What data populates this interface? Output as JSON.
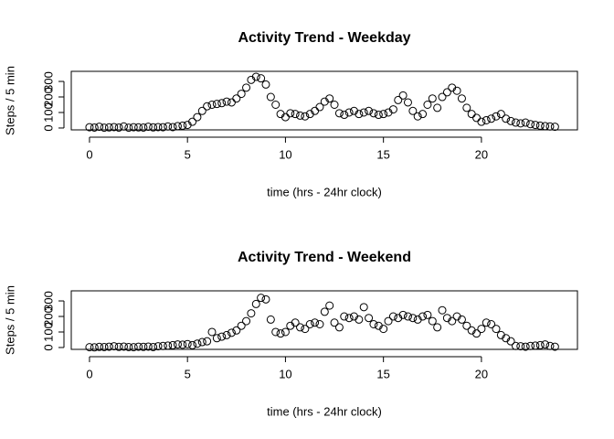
{
  "chart_data": [
    {
      "type": "scatter",
      "title": "Activity Trend - Weekday",
      "x_label": "time (hrs - 24hr clock)",
      "y_label": "Steps / 5 min",
      "x": [
        0,
        0.25,
        0.5,
        0.75,
        1,
        1.25,
        1.5,
        1.75,
        2,
        2.25,
        2.5,
        2.75,
        3,
        3.25,
        3.5,
        3.75,
        4,
        4.25,
        4.5,
        4.75,
        5,
        5.25,
        5.5,
        5.75,
        6,
        6.25,
        6.5,
        6.75,
        7,
        7.25,
        7.5,
        7.75,
        8,
        8.25,
        8.5,
        8.75,
        9,
        9.25,
        9.5,
        9.75,
        10,
        10.25,
        10.5,
        10.75,
        11,
        11.25,
        11.5,
        11.75,
        12,
        12.25,
        12.5,
        12.75,
        13,
        13.25,
        13.5,
        13.75,
        14,
        14.25,
        14.5,
        14.75,
        15,
        15.25,
        15.5,
        15.75,
        16,
        16.25,
        16.5,
        16.75,
        17,
        17.25,
        17.5,
        17.75,
        18,
        18.25,
        18.5,
        18.75,
        19,
        19.25,
        19.5,
        19.75,
        20,
        20.25,
        20.5,
        20.75,
        21,
        21.25,
        21.5,
        21.75,
        22,
        22.25,
        22.5,
        22.75,
        23,
        23.25,
        23.5,
        23.75
      ],
      "values": [
        5,
        3,
        8,
        2,
        4,
        6,
        3,
        10,
        2,
        5,
        4,
        3,
        8,
        4,
        6,
        5,
        10,
        6,
        12,
        15,
        20,
        40,
        70,
        110,
        140,
        150,
        155,
        160,
        170,
        165,
        190,
        220,
        260,
        310,
        330,
        320,
        280,
        200,
        150,
        90,
        70,
        95,
        90,
        80,
        75,
        90,
        110,
        135,
        170,
        190,
        150,
        95,
        85,
        100,
        110,
        90,
        100,
        110,
        95,
        85,
        90,
        100,
        120,
        180,
        210,
        165,
        110,
        75,
        90,
        150,
        190,
        130,
        200,
        230,
        260,
        240,
        190,
        130,
        90,
        65,
        40,
        50,
        60,
        75,
        90,
        60,
        45,
        35,
        30,
        35,
        25,
        20,
        15,
        12,
        10,
        8
      ],
      "color": "#000000",
      "xlim": [
        -0.93,
        24.9
      ],
      "ylim": [
        -12,
        365
      ],
      "xticks": [
        0,
        5,
        10,
        15,
        20
      ],
      "yticks": [
        0,
        100,
        200,
        300
      ]
    },
    {
      "type": "scatter",
      "title": "Activity Trend - Weekend",
      "x_label": "time (hrs - 24hr clock)",
      "y_label": "Steps / 5 min",
      "x": [
        0,
        0.25,
        0.5,
        0.75,
        1,
        1.25,
        1.5,
        1.75,
        2,
        2.25,
        2.5,
        2.75,
        3,
        3.25,
        3.5,
        3.75,
        4,
        4.25,
        4.5,
        4.75,
        5,
        5.25,
        5.5,
        5.75,
        6,
        6.25,
        6.5,
        6.75,
        7,
        7.25,
        7.5,
        7.75,
        8,
        8.25,
        8.5,
        8.75,
        9,
        9.25,
        9.5,
        9.75,
        10,
        10.25,
        10.5,
        10.75,
        11,
        11.25,
        11.5,
        11.75,
        12,
        12.25,
        12.5,
        12.75,
        13,
        13.25,
        13.5,
        13.75,
        14,
        14.25,
        14.5,
        14.75,
        15,
        15.25,
        15.5,
        15.75,
        16,
        16.25,
        16.5,
        16.75,
        17,
        17.25,
        17.5,
        17.75,
        18,
        18.25,
        18.5,
        18.75,
        19,
        19.25,
        19.5,
        19.75,
        20,
        20.25,
        20.5,
        20.75,
        21,
        21.25,
        21.5,
        21.75,
        22,
        22.25,
        22.5,
        22.75,
        23,
        23.25,
        23.5,
        23.75
      ],
      "values": [
        2,
        1,
        4,
        3,
        5,
        8,
        4,
        6,
        3,
        2,
        5,
        4,
        6,
        3,
        8,
        10,
        12,
        15,
        20,
        18,
        22,
        15,
        25,
        35,
        40,
        100,
        60,
        70,
        80,
        95,
        110,
        140,
        170,
        220,
        280,
        320,
        310,
        180,
        100,
        90,
        100,
        140,
        160,
        130,
        120,
        150,
        160,
        150,
        230,
        270,
        160,
        130,
        200,
        190,
        200,
        180,
        260,
        190,
        150,
        140,
        120,
        170,
        200,
        190,
        210,
        200,
        190,
        180,
        200,
        210,
        170,
        130,
        240,
        190,
        170,
        200,
        180,
        140,
        110,
        90,
        120,
        160,
        150,
        120,
        80,
        60,
        40,
        10,
        8,
        5,
        10,
        12,
        15,
        20,
        10,
        5
      ],
      "color": "#000000",
      "xlim": [
        -0.93,
        24.9
      ],
      "ylim": [
        -12,
        365
      ],
      "xticks": [
        0,
        5,
        10,
        15,
        20
      ],
      "yticks": [
        0,
        100,
        200,
        300
      ]
    }
  ]
}
